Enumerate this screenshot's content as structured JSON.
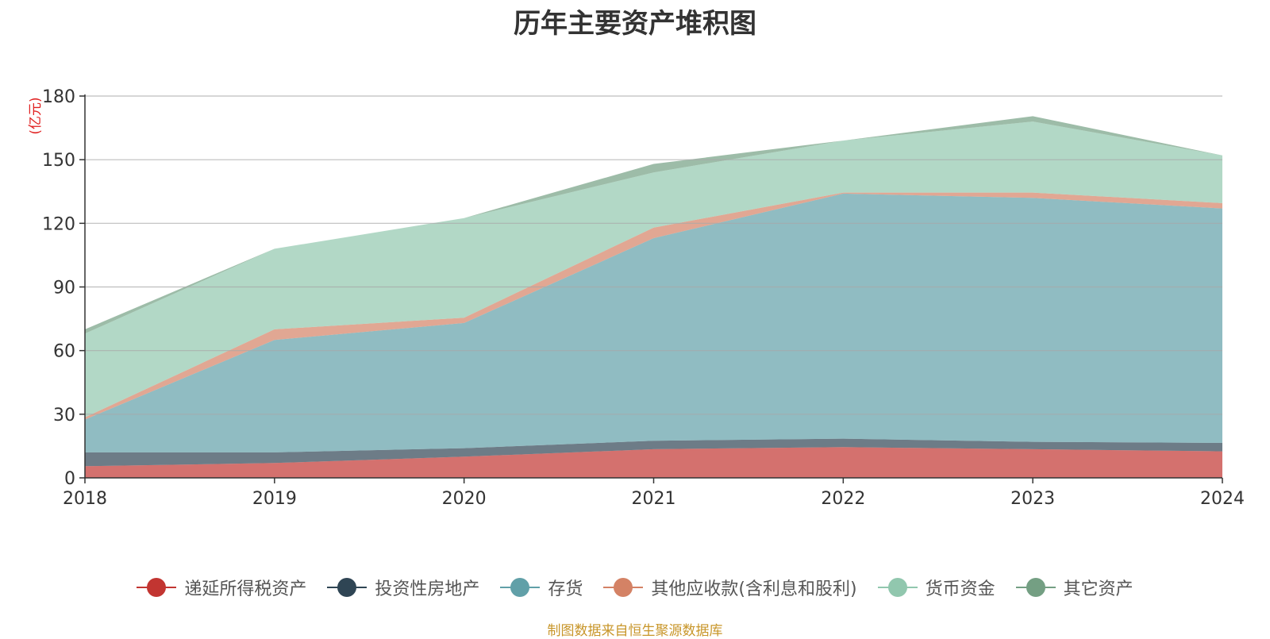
{
  "title": "历年主要资产堆积图",
  "source_note": "制图数据来自恒生聚源数据库",
  "chart_data": {
    "type": "area",
    "stacked": true,
    "title": "历年主要资产堆积图",
    "unit": "(亿元)",
    "xlabel": "",
    "ylabel": "",
    "x": [
      "2018",
      "2019",
      "2020",
      "2021",
      "2022",
      "2023",
      "2024"
    ],
    "ylim": [
      0,
      180
    ],
    "yticks": [
      0,
      30,
      60,
      90,
      120,
      150,
      180
    ],
    "grid": true,
    "legend_position": "bottom",
    "series": [
      {
        "name": "递延所得税资产",
        "color": "#c23531",
        "values": [
          5.5,
          7.0,
          10.0,
          13.5,
          14.5,
          13.5,
          12.5
        ]
      },
      {
        "name": "投资性房地产",
        "color": "#2f4554",
        "values": [
          6.5,
          5.0,
          4.0,
          4.0,
          4.0,
          3.5,
          4.0
        ]
      },
      {
        "name": "存货",
        "color": "#61a0a8",
        "values": [
          15.5,
          53.0,
          59.0,
          95.5,
          115.5,
          115.0,
          110.5
        ]
      },
      {
        "name": "其他应收款(含利息和股利)",
        "color": "#d48265",
        "values": [
          1.0,
          5.0,
          2.5,
          5.0,
          0.5,
          2.5,
          2.5
        ]
      },
      {
        "name": "货币资金",
        "color": "#91c7ae",
        "values": [
          39.5,
          38.0,
          47.0,
          26.0,
          24.5,
          33.5,
          22.5
        ]
      },
      {
        "name": "其它资产",
        "color": "#749f83",
        "values": [
          2.0,
          0.0,
          0.0,
          4.0,
          0.0,
          2.5,
          0.0
        ]
      }
    ]
  }
}
